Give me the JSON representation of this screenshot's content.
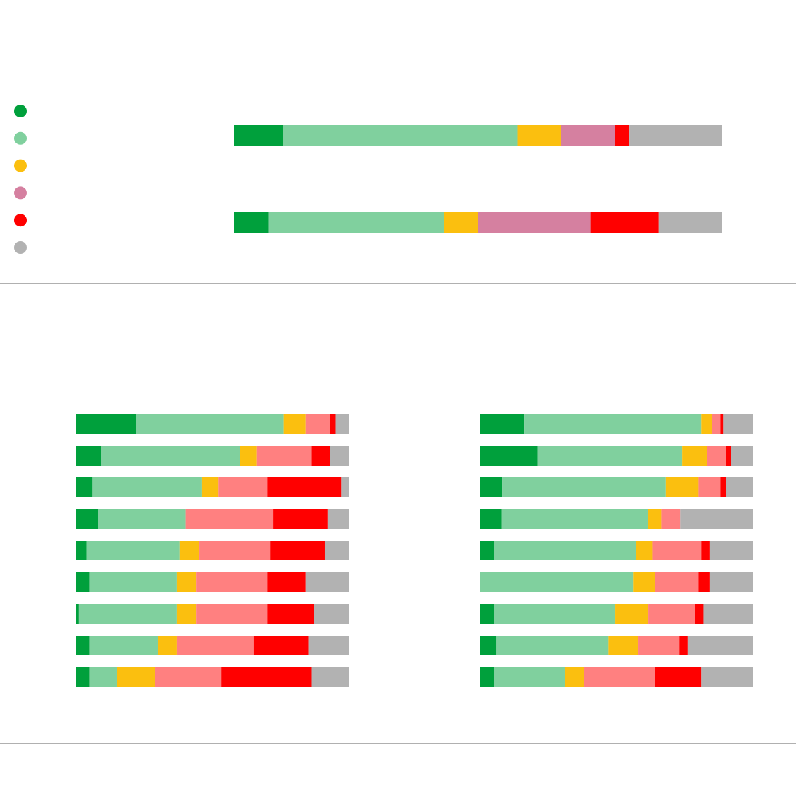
{
  "colors": {
    "very_positive": "#00a03c",
    "positive": "#80d09e",
    "neutral": "#fbbf0f",
    "negative_top": "#d580a0",
    "negative_bottom": "#ff8080",
    "very_negative": "#ff0000",
    "no_answer": "#b2b2b2",
    "divider": "#b0b0b0"
  },
  "legend": {
    "items": [
      {
        "color": "#00a03c",
        "icon": "green-dot-icon"
      },
      {
        "color": "#80d09e",
        "icon": "light-green-dot-icon"
      },
      {
        "color": "#fbbf0f",
        "icon": "yellow-dot-icon"
      },
      {
        "color": "#d580a0",
        "icon": "pink-dot-icon"
      },
      {
        "color": "#ff0000",
        "icon": "red-dot-icon"
      },
      {
        "color": "#b2b2b2",
        "icon": "grey-dot-icon"
      }
    ]
  },
  "chart_data": [
    {
      "type": "bar",
      "stacked": true,
      "orientation": "horizontal",
      "unit": "percent",
      "title": "",
      "series_colors": [
        "#00a03c",
        "#80d09e",
        "#fbbf0f",
        "#d580a0",
        "#ff0000",
        "#b2b2b2"
      ],
      "rows": [
        [
          10,
          48,
          9,
          11,
          3,
          19
        ],
        [
          7,
          36,
          7,
          23,
          14,
          13
        ]
      ]
    },
    {
      "type": "bar",
      "stacked": true,
      "orientation": "horizontal",
      "unit": "percent",
      "title": "",
      "series_colors": [
        "#00a03c",
        "#80d09e",
        "#fbbf0f",
        "#ff8080",
        "#ff0000",
        "#b2b2b2"
      ],
      "rows": [
        [
          22,
          54,
          8,
          9,
          2,
          5
        ],
        [
          9,
          51,
          6,
          20,
          7,
          7
        ],
        [
          6,
          40,
          6,
          18,
          27,
          3
        ],
        [
          8,
          32,
          0,
          32,
          20,
          8
        ],
        [
          4,
          34,
          7,
          26,
          20,
          9
        ],
        [
          5,
          32,
          7,
          26,
          14,
          16
        ],
        [
          1,
          36,
          7,
          26,
          17,
          13
        ],
        [
          5,
          25,
          7,
          28,
          20,
          15
        ],
        [
          5,
          10,
          14,
          24,
          33,
          14
        ]
      ]
    },
    {
      "type": "bar",
      "stacked": true,
      "orientation": "horizontal",
      "unit": "percent",
      "title": "",
      "series_colors": [
        "#00a03c",
        "#80d09e",
        "#fbbf0f",
        "#ff8080",
        "#ff0000",
        "#b2b2b2"
      ],
      "rows": [
        [
          16,
          65,
          4,
          3,
          1,
          11
        ],
        [
          21,
          53,
          9,
          7,
          2,
          8
        ],
        [
          8,
          60,
          12,
          8,
          2,
          10
        ],
        [
          8,
          54,
          5,
          7,
          0,
          27
        ],
        [
          5,
          52,
          6,
          18,
          3,
          16
        ],
        [
          0,
          56,
          8,
          16,
          4,
          16
        ],
        [
          5,
          44,
          12,
          17,
          3,
          18
        ],
        [
          6,
          41,
          11,
          15,
          3,
          24
        ],
        [
          5,
          26,
          7,
          26,
          17,
          19
        ]
      ]
    }
  ]
}
